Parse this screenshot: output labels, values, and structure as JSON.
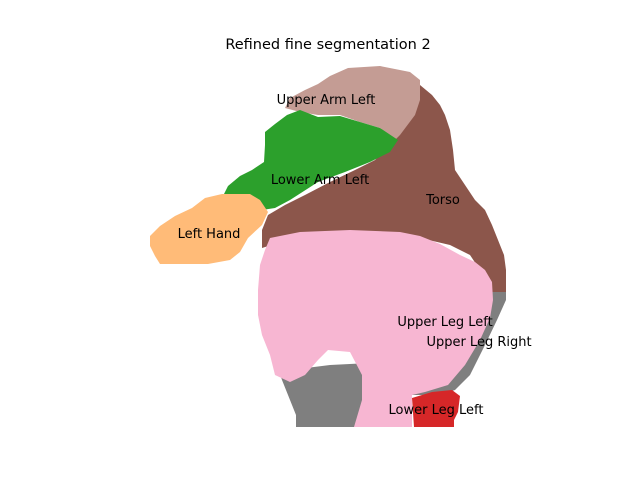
{
  "figure": {
    "title": "Refined fine segmentation 2"
  },
  "segments": [
    {
      "id": "upper_arm_left",
      "label": "Upper Arm Left",
      "color": "#c49c94"
    },
    {
      "id": "lower_arm_left",
      "label": "Lower Arm Left",
      "color": "#2ca02c"
    },
    {
      "id": "left_hand",
      "label": "Left Hand",
      "color": "#ffbb78"
    },
    {
      "id": "torso",
      "label": "Torso",
      "color": "#8c564b"
    },
    {
      "id": "upper_leg_left",
      "label": "Upper Leg Left",
      "color": "#f7b6d2"
    },
    {
      "id": "upper_leg_right",
      "label": "Upper Leg Right",
      "color": "#7f7f7f"
    },
    {
      "id": "lower_leg_left",
      "label": "Lower Leg Left",
      "color": "#d62728"
    }
  ]
}
